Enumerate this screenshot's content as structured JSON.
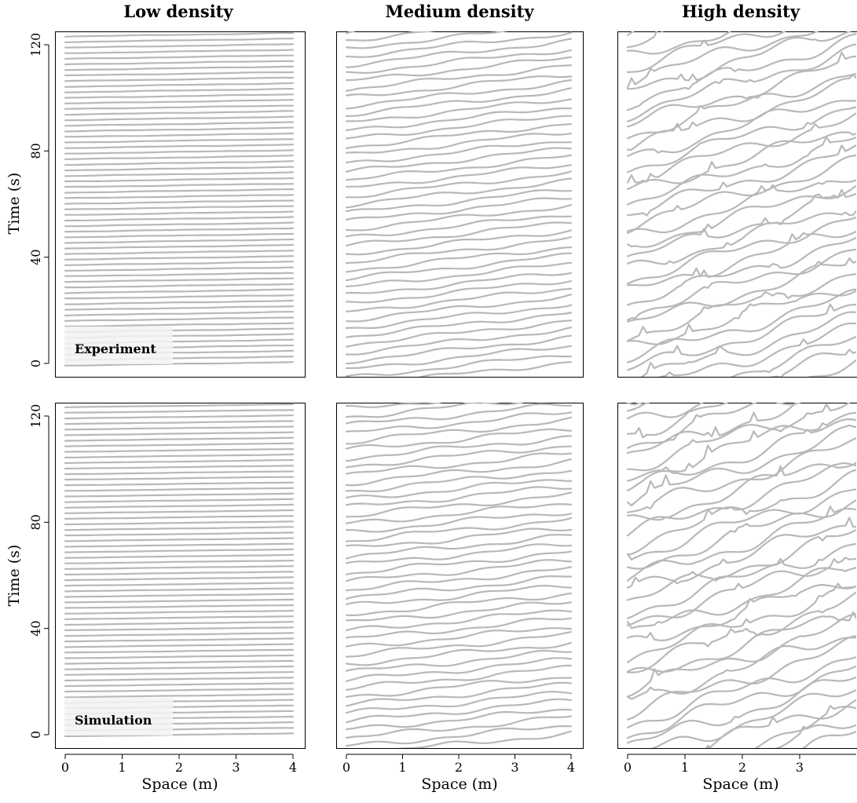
{
  "chart_data": {
    "type": "line",
    "column_titles": [
      "Low density",
      "Medium density",
      "High density"
    ],
    "row_labels": [
      "Experiment",
      "Simulation"
    ],
    "xlabel": "Space (m)",
    "ylabel": "Time (s)",
    "xlim": [
      0,
      4
    ],
    "ylim": [
      0,
      120
    ],
    "xticks": [
      "0",
      "1",
      "2",
      "3",
      "4"
    ],
    "yticks": [
      "0",
      "40",
      "80",
      "120"
    ],
    "grid": false,
    "line_color": "#b8b8b8",
    "panels": [
      {
        "row": "Experiment",
        "column": "Low density",
        "density": "low",
        "trajectories": 58,
        "crossing_time_s": 1.3,
        "time_spacing_s": 2.1,
        "wiggle": 0.1
      },
      {
        "row": "Experiment",
        "column": "Medium density",
        "density": "medium",
        "trajectories": 40,
        "crossing_time_s": 9,
        "time_spacing_s": 3.1,
        "wiggle": 1.0
      },
      {
        "row": "Experiment",
        "column": "High density",
        "density": "high",
        "trajectories": 34,
        "crossing_time_s": 24,
        "time_spacing_s": 4.2,
        "wiggle": 3.0
      },
      {
        "row": "Simulation",
        "column": "Low density",
        "density": "low",
        "trajectories": 58,
        "crossing_time_s": 1.1,
        "time_spacing_s": 2.1,
        "wiggle": 0.05
      },
      {
        "row": "Simulation",
        "column": "Medium density",
        "density": "medium",
        "trajectories": 40,
        "crossing_time_s": 8,
        "time_spacing_s": 3.1,
        "wiggle": 1.2
      },
      {
        "row": "Simulation",
        "column": "High density",
        "density": "high",
        "trajectories": 34,
        "crossing_time_s": 26,
        "time_spacing_s": 4.2,
        "wiggle": 3.5
      }
    ]
  }
}
